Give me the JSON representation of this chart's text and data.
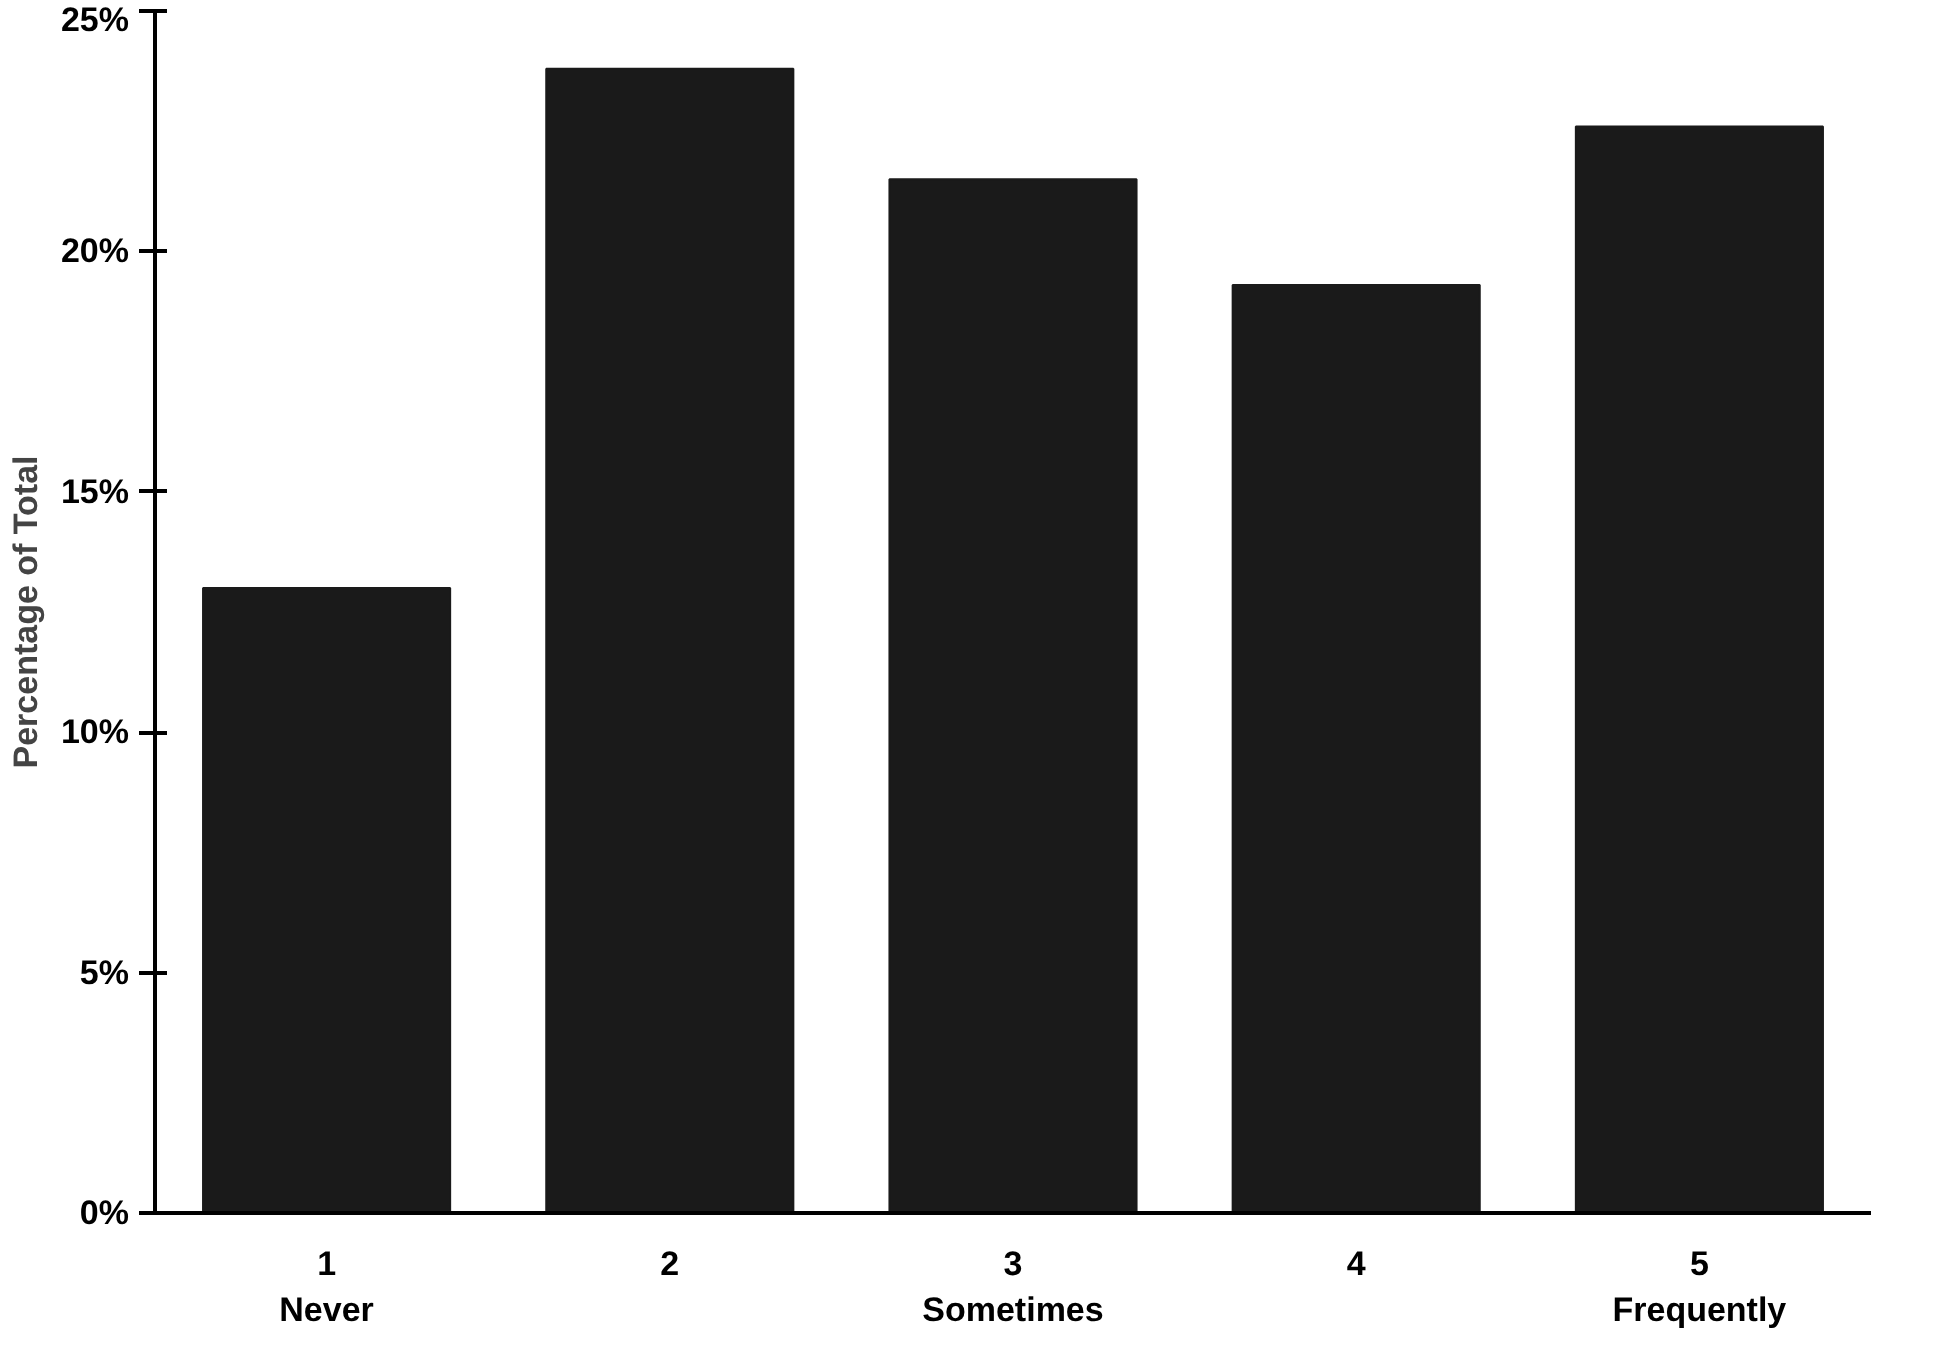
{
  "chart_data": {
    "type": "bar",
    "ylabel": "Percentage of Total",
    "categories": [
      "1\nNever",
      "2",
      "3\nSometimes",
      "4",
      "5\nFrequently"
    ],
    "values": [
      13,
      23.8,
      21.5,
      19.3,
      22.6
    ],
    "color": "#1a1a1a",
    "ylim": [
      0,
      25
    ],
    "yticks": [
      {
        "value": 0,
        "label": "0%"
      },
      {
        "value": 5,
        "label": "5%"
      },
      {
        "value": 10,
        "label": "10%"
      },
      {
        "value": 15,
        "label": "15%"
      },
      {
        "value": 20,
        "label": "20%"
      },
      {
        "value": 25,
        "label": "25%"
      }
    ],
    "grid": false
  }
}
